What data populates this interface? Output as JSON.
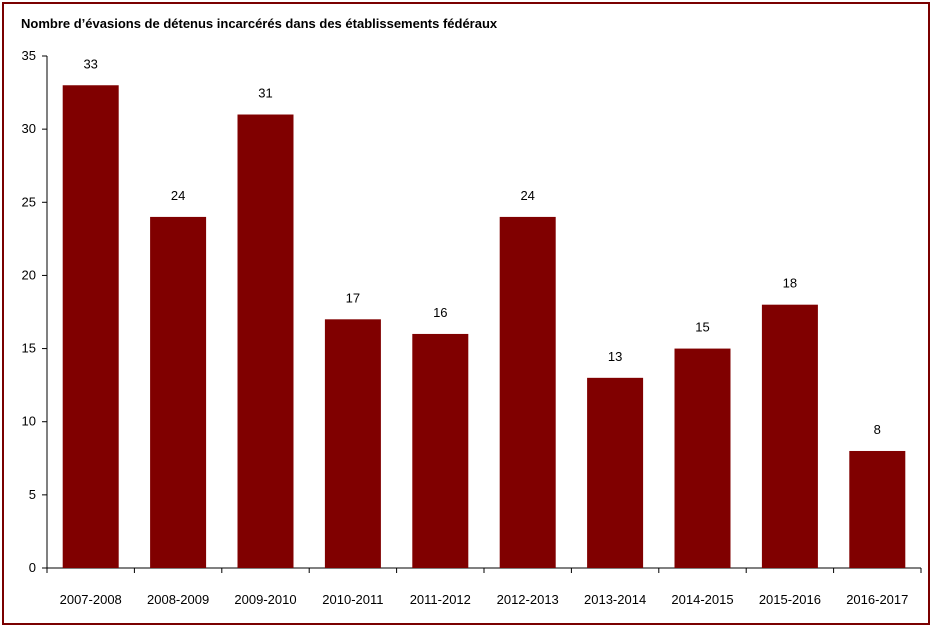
{
  "chart_data": {
    "type": "bar",
    "title": "Nombre d’évasions de détenus incarcérés dans des établissements fédéraux",
    "xlabel": "",
    "ylabel": "",
    "categories": [
      "2007-2008",
      "2008-2009",
      "2009-2010",
      "2010-2011",
      "2011-2012",
      "2012-2013",
      "2013-2014",
      "2014-2015",
      "2015-2016",
      "2016-2017"
    ],
    "values": [
      33,
      24,
      31,
      17,
      16,
      24,
      13,
      15,
      18,
      8
    ],
    "ylim": [
      0,
      35
    ],
    "yticks": [
      0,
      5,
      10,
      15,
      20,
      25,
      30,
      35
    ],
    "grid": false,
    "legend": "none",
    "bar_color": "#800000",
    "frame_color": "#7a0000"
  }
}
